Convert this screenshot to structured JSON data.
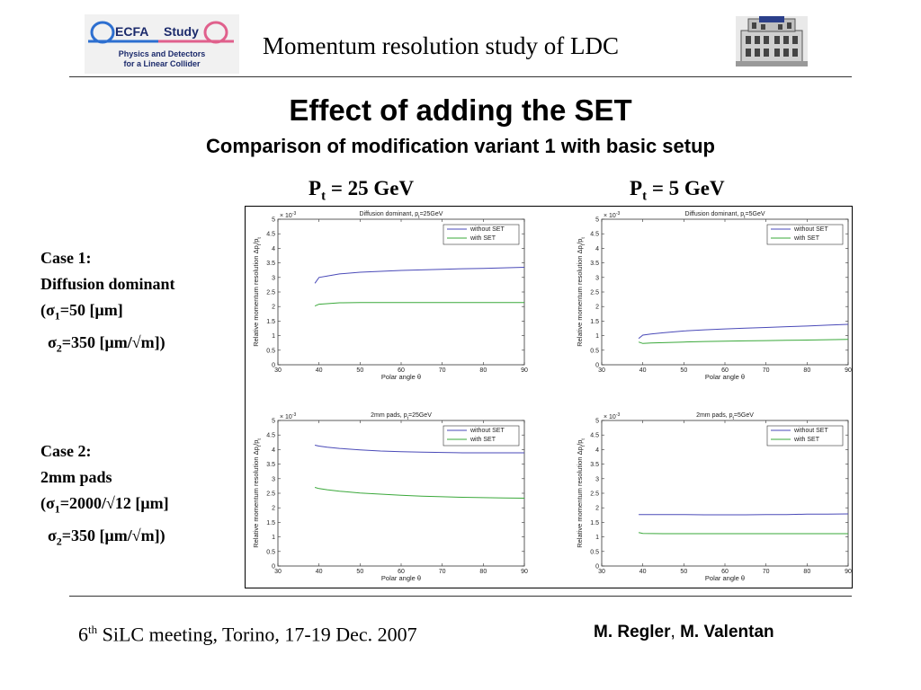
{
  "header": {
    "logo": {
      "word1": "ECFA",
      "word2": "Study",
      "line1": "Physics and Detectors",
      "line2": "for a Linear Collider",
      "colors": {
        "blue": "#2d6fd0",
        "pink": "#e0608c",
        "text": "#1b2a6b"
      }
    },
    "title": "Momentum resolution study of LDC",
    "building_icon": "building-icon"
  },
  "main": {
    "title": "Effect of adding the SET",
    "subtitle": "Comparison of modification variant 1 with basic setup"
  },
  "columns": [
    {
      "p": "P",
      "sub": "t",
      "rest": " = 25 GeV"
    },
    {
      "p": "P",
      "sub": "t",
      "rest": " = 5 GeV"
    }
  ],
  "cases": [
    {
      "line1": "Case 1:",
      "line2": "Diffusion dominant",
      "l3a": "(σ",
      "l3sub": "1",
      "l3b": "=50 [μm]",
      "l4a": "σ",
      "l4sub": "2",
      "l4b": "=350 [μm/√m])"
    },
    {
      "line1": "Case 2:",
      "line2": "2mm pads",
      "l3a": "(σ",
      "l3sub": "1",
      "l3b": "=2000/√12 [μm]",
      "l4a": "σ",
      "l4sub": "2",
      "l4b": "=350 [μm/√m])"
    }
  ],
  "footer": {
    "meeting_num": "6",
    "meeting_sup": "th",
    "meeting_rest": " SiLC meeting, Torino, 17-19 Dec. 2007",
    "author1": "M. Regler",
    "sep": ", ",
    "author2": "M. Valentan"
  },
  "chart_data": [
    {
      "type": "line",
      "title": "Diffusion dominant, p",
      "title_sub": "t",
      "title_rest": "=25GeV",
      "xlabel": "Polar angle θ",
      "ylabel": "Relative momentum resolution Δp",
      "ylabel_sub": "t",
      "ylabel_rest": "/p",
      "ylabel_sub2": "t",
      "exponent": "× 10",
      "exponent_pow": "-3",
      "xlim": [
        30,
        90
      ],
      "ylim": [
        0,
        5
      ],
      "xticks": [
        30,
        40,
        50,
        60,
        70,
        80,
        90
      ],
      "yticks": [
        0,
        0.5,
        1,
        1.5,
        2,
        2.5,
        3,
        3.5,
        4,
        4.5,
        5
      ],
      "legend": "top-right",
      "series": [
        {
          "name": "without SET",
          "color": "#4a4ab8",
          "x": [
            39,
            40,
            42,
            45,
            50,
            55,
            60,
            65,
            70,
            75,
            80,
            85,
            90
          ],
          "y": [
            2.8,
            3.0,
            3.05,
            3.12,
            3.18,
            3.21,
            3.24,
            3.26,
            3.28,
            3.3,
            3.31,
            3.33,
            3.35
          ]
        },
        {
          "name": "with SET",
          "color": "#3aa83a",
          "x": [
            39,
            40,
            42,
            45,
            50,
            55,
            60,
            65,
            70,
            75,
            80,
            85,
            90
          ],
          "y": [
            2.02,
            2.08,
            2.1,
            2.13,
            2.14,
            2.14,
            2.14,
            2.14,
            2.14,
            2.14,
            2.14,
            2.14,
            2.14
          ]
        }
      ]
    },
    {
      "type": "line",
      "title": "Diffusion dominant, p",
      "title_sub": "t",
      "title_rest": "=5GeV",
      "xlabel": "Polar angle θ",
      "ylabel": "Relative momentum resolution Δp",
      "ylabel_sub": "t",
      "ylabel_rest": "/p",
      "ylabel_sub2": "t",
      "exponent": "× 10",
      "exponent_pow": "-3",
      "xlim": [
        30,
        90
      ],
      "ylim": [
        0,
        5
      ],
      "xticks": [
        30,
        40,
        50,
        60,
        70,
        80,
        90
      ],
      "yticks": [
        0,
        0.5,
        1,
        1.5,
        2,
        2.5,
        3,
        3.5,
        4,
        4.5,
        5
      ],
      "legend": "top-right",
      "series": [
        {
          "name": "without SET",
          "color": "#4a4ab8",
          "x": [
            39,
            40,
            42,
            45,
            50,
            55,
            60,
            65,
            70,
            75,
            80,
            85,
            90
          ],
          "y": [
            0.9,
            1.02,
            1.06,
            1.1,
            1.16,
            1.2,
            1.23,
            1.26,
            1.28,
            1.31,
            1.33,
            1.36,
            1.39
          ]
        },
        {
          "name": "with SET",
          "color": "#3aa83a",
          "x": [
            39,
            40,
            42,
            45,
            50,
            55,
            60,
            65,
            70,
            75,
            80,
            85,
            90
          ],
          "y": [
            0.78,
            0.73,
            0.75,
            0.76,
            0.78,
            0.8,
            0.81,
            0.82,
            0.83,
            0.84,
            0.85,
            0.86,
            0.87
          ]
        }
      ]
    },
    {
      "type": "line",
      "title": "2mm pads, p",
      "title_sub": "t",
      "title_rest": "=25GeV",
      "xlabel": "Polar angle θ",
      "ylabel": "Relative momentum resolution Δp",
      "ylabel_sub": "t",
      "ylabel_rest": "/p",
      "ylabel_sub2": "t",
      "exponent": "× 10",
      "exponent_pow": "-3",
      "xlim": [
        30,
        90
      ],
      "ylim": [
        0,
        5
      ],
      "xticks": [
        30,
        40,
        50,
        60,
        70,
        80,
        90
      ],
      "yticks": [
        0,
        0.5,
        1,
        1.5,
        2,
        2.5,
        3,
        3.5,
        4,
        4.5,
        5
      ],
      "legend": "top-right",
      "series": [
        {
          "name": "without SET",
          "color": "#4a4ab8",
          "x": [
            39,
            40,
            42,
            45,
            50,
            55,
            60,
            65,
            70,
            75,
            80,
            85,
            90
          ],
          "y": [
            4.15,
            4.12,
            4.08,
            4.04,
            3.99,
            3.95,
            3.93,
            3.91,
            3.9,
            3.89,
            3.89,
            3.89,
            3.89
          ]
        },
        {
          "name": "with SET",
          "color": "#3aa83a",
          "x": [
            39,
            40,
            42,
            45,
            50,
            55,
            60,
            65,
            70,
            75,
            80,
            85,
            90
          ],
          "y": [
            2.7,
            2.66,
            2.62,
            2.57,
            2.51,
            2.47,
            2.43,
            2.4,
            2.38,
            2.36,
            2.35,
            2.34,
            2.33
          ]
        }
      ]
    },
    {
      "type": "line",
      "title": "2mm pads, p",
      "title_sub": "t",
      "title_rest": "=5GeV",
      "xlabel": "Polar angle θ",
      "ylabel": "Relative momentum resolution Δp",
      "ylabel_sub": "t",
      "ylabel_rest": "/p",
      "ylabel_sub2": "t",
      "exponent": "× 10",
      "exponent_pow": "-3",
      "xlim": [
        30,
        90
      ],
      "ylim": [
        0,
        5
      ],
      "xticks": [
        30,
        40,
        50,
        60,
        70,
        80,
        90
      ],
      "yticks": [
        0,
        0.5,
        1,
        1.5,
        2,
        2.5,
        3,
        3.5,
        4,
        4.5,
        5
      ],
      "legend": "top-right",
      "series": [
        {
          "name": "without SET",
          "color": "#4a4ab8",
          "x": [
            39,
            40,
            45,
            50,
            55,
            60,
            65,
            70,
            75,
            80,
            85,
            90
          ],
          "y": [
            1.77,
            1.77,
            1.77,
            1.77,
            1.76,
            1.76,
            1.76,
            1.77,
            1.77,
            1.78,
            1.78,
            1.79
          ]
        },
        {
          "name": "with SET",
          "color": "#3aa83a",
          "x": [
            39,
            40,
            45,
            50,
            55,
            60,
            65,
            70,
            75,
            80,
            85,
            90
          ],
          "y": [
            1.15,
            1.12,
            1.11,
            1.11,
            1.11,
            1.11,
            1.11,
            1.11,
            1.11,
            1.11,
            1.11,
            1.11
          ]
        }
      ]
    }
  ]
}
